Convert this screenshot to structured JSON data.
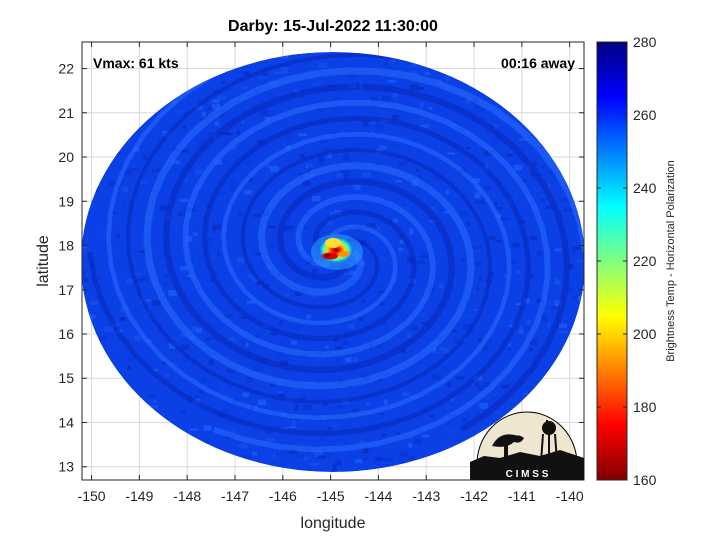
{
  "title": "Darby: 15-Jul-2022 11:30:00",
  "vmax_label": "Vmax: 61 kts",
  "time_label": "00:16 away",
  "xlabel": "longitude",
  "ylabel": "latitude",
  "colorbar_label": "Brightness Temp - Horizontal Polarization",
  "logo_text": "C I M S S",
  "chart_data": {
    "type": "heatmap",
    "title": "Darby: 15-Jul-2022 11:30:00",
    "xlabel": "longitude",
    "ylabel": "latitude",
    "xlim": [
      -150.2,
      -139.7
    ],
    "ylim": [
      12.7,
      22.6
    ],
    "xticks": [
      -150,
      -149,
      -148,
      -147,
      -146,
      -145,
      -144,
      -143,
      -142,
      -141,
      -140
    ],
    "yticks": [
      13,
      14,
      15,
      16,
      17,
      18,
      19,
      20,
      21,
      22
    ],
    "grid": true,
    "swath_center": {
      "lon": -144.9,
      "lat": 17.7
    },
    "storm_center": {
      "lon": -144.85,
      "lat": 17.85
    },
    "colorbar": {
      "label": "Brightness Temp - Horizontal Polarization",
      "range": [
        160,
        280
      ],
      "ticks": [
        160,
        180,
        200,
        220,
        240,
        260,
        280
      ],
      "colormap": "jet"
    },
    "background_temp": 262,
    "cold_core_min": 178
  },
  "colors": {
    "swath_base": "#0a3de0",
    "spiral_dark": "#0a26b8",
    "spiral_light": "#2a6cff",
    "grid": "#d9d9d9"
  }
}
